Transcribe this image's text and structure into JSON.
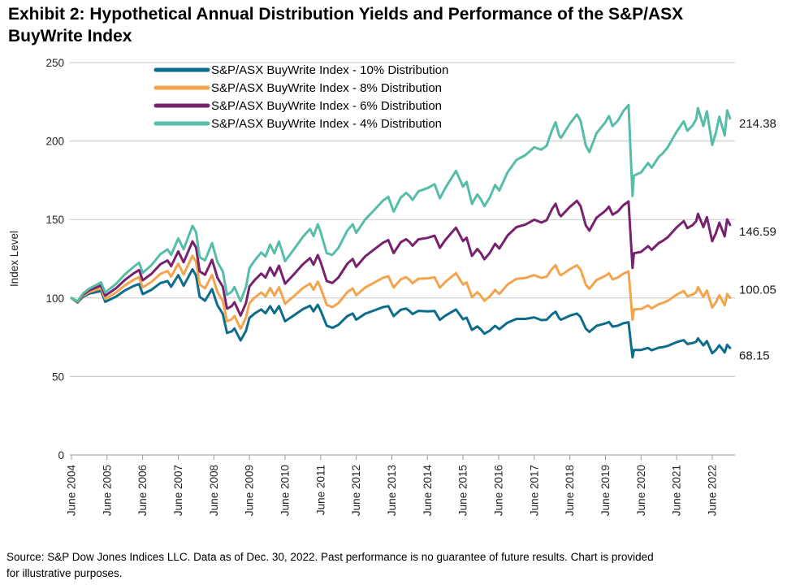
{
  "title": "Exhibit 2: Hypothetical Annual Distribution Yields and Performance of the S&P/ASX\nBuyWrite Index",
  "footer": "Source: S&P Dow Jones Indices LLC. Data as of Dec. 30, 2022. Past performance is no guarantee of future results. Chart is provided\nfor illustrative purposes.",
  "chart_data": {
    "type": "line",
    "title": "Exhibit 2: Hypothetical Annual Distribution Yields and Performance of the S&P/ASX BuyWrite Index",
    "ylabel": "Index Level",
    "xlabel": "",
    "ylim": [
      0,
      250
    ],
    "yticks": [
      0,
      50,
      100,
      150,
      200,
      250
    ],
    "grid": true,
    "legend_position": "top-left-inside",
    "x_unit": "years since June 2004",
    "xtick_labels": [
      "June 2004",
      "June 2005",
      "June 2006",
      "June 2007",
      "June 2008",
      "June 2009",
      "June 2010",
      "June 2011",
      "June 2012",
      "June 2013",
      "June 2014",
      "June 2015",
      "June 2016",
      "June 2017",
      "June 2018",
      "June 2019",
      "June 2020",
      "June 2021",
      "June 2022"
    ],
    "xtick_positions": [
      0,
      1,
      2,
      3,
      4,
      5,
      6,
      7,
      8,
      9,
      10,
      11,
      12,
      13,
      14,
      15,
      16,
      17,
      18
    ],
    "x": [
      0,
      0.17,
      0.33,
      0.5,
      0.67,
      0.83,
      0.95,
      1.25,
      1.5,
      1.75,
      1.9,
      2,
      2.25,
      2.5,
      2.7,
      2.8,
      3,
      3.15,
      3.4,
      3.5,
      3.6,
      3.75,
      3.95,
      4.1,
      4.25,
      4.37,
      4.5,
      4.58,
      4.75,
      4.9,
      5,
      5.15,
      5.33,
      5.45,
      5.58,
      5.7,
      5.83,
      6,
      6.25,
      6.5,
      6.7,
      6.8,
      6.92,
      7,
      7.17,
      7.33,
      7.5,
      7.75,
      7.9,
      8,
      8.25,
      8.5,
      8.75,
      8.9,
      9.05,
      9.25,
      9.4,
      9.5,
      9.58,
      9.75,
      10,
      10.2,
      10.35,
      10.5,
      10.8,
      11,
      11.1,
      11.25,
      11.4,
      11.5,
      11.6,
      11.75,
      11.9,
      12.02,
      12.25,
      12.5,
      12.75,
      13,
      13.2,
      13.35,
      13.5,
      13.6,
      13.7,
      13.75,
      14,
      14.2,
      14.3,
      14.45,
      14.55,
      14.75,
      15,
      15.1,
      15.2,
      15.35,
      15.5,
      15.65,
      15.76,
      15.8,
      16,
      16.2,
      16.3,
      16.5,
      16.6,
      16.75,
      17,
      17.2,
      17.3,
      17.45,
      17.55,
      17.6,
      17.75,
      17.85,
      18,
      18.1,
      18.2,
      18.35,
      18.42,
      18.5
    ],
    "series": [
      {
        "name": "S&P/ASX BuyWrite Index - 10% Distribution",
        "color": "#0E6C8B",
        "end_label": "68.15",
        "label_dy": 9,
        "values": [
          100,
          97,
          100.9,
          102.8,
          103.6,
          104.5,
          97.6,
          100.9,
          104.8,
          107.7,
          108.9,
          102.5,
          105.3,
          109.6,
          110.8,
          107.2,
          114.6,
          107.8,
          118.3,
          114.3,
          100.8,
          98.3,
          105.7,
          95.4,
          89.9,
          77.8,
          78.7,
          80.6,
          73,
          79,
          87.3,
          90.2,
          92.7,
          90.3,
          94.8,
          90.3,
          94.8,
          85.2,
          89,
          92.9,
          95.1,
          91.5,
          95.7,
          92,
          82.4,
          81,
          82.9,
          88.5,
          90.1,
          86.2,
          90,
          92.1,
          94.2,
          94.8,
          88.5,
          92.5,
          93.3,
          91.6,
          89.8,
          91.8,
          91.5,
          91.7,
          86.1,
          88.7,
          92.7,
          86.5,
          87.5,
          79.7,
          81.9,
          80,
          77.3,
          79.2,
          82.3,
          80.1,
          84.3,
          86.7,
          86.7,
          87.7,
          85.9,
          86.2,
          89.7,
          91.3,
          87.1,
          86.2,
          88.7,
          90.1,
          87.9,
          80.5,
          78.4,
          82.3,
          83.8,
          84.8,
          81.8,
          82.4,
          83.9,
          84.6,
          62.2,
          66.9,
          66.9,
          68.2,
          66.7,
          68.4,
          68.7,
          69.5,
          71.9,
          73.2,
          70.7,
          71.3,
          72.2,
          74.3,
          69.8,
          72.5,
          64.8,
          66.8,
          69.9,
          65.3,
          70.2,
          68.15
        ]
      },
      {
        "name": "S&P/ASX BuyWrite Index - 8% Distribution",
        "color": "#F3A44C",
        "end_label": "100.05",
        "label_dy": -10,
        "values": [
          100,
          97.3,
          101.6,
          103.8,
          105.1,
          106.3,
          99.5,
          103.5,
          108.1,
          111.7,
          113.3,
          106.8,
          110.3,
          115.4,
          117.2,
          113.6,
          121.9,
          115,
          126.9,
          122.9,
          108.6,
          106.2,
          114.7,
          103.8,
          98.2,
          85.2,
          86.4,
          88.6,
          80.5,
          87.4,
          96.8,
          100.3,
          103.5,
          101,
          106.4,
          101.5,
          106.9,
          96.4,
          101.2,
          106.3,
          109.2,
          105.3,
          110.4,
          106.3,
          95.6,
          94.2,
          96.8,
          103.8,
          106.1,
          101.7,
          106.7,
          109.8,
          112.9,
          113.9,
          106.7,
          111.9,
          113.3,
          111.5,
          109.4,
          112.3,
          112.5,
          113.2,
          106.6,
          110.2,
          115.9,
          108.6,
          110,
          100.5,
          103.7,
          101.4,
          98.2,
          101,
          105.2,
          102.6,
          108.6,
          112.2,
          112.8,
          114.6,
          112.8,
          113.6,
          118.6,
          120.9,
          115.6,
          114.5,
          118.4,
          120.8,
          118.1,
          108.5,
          105.9,
          111.5,
          114.2,
          115.8,
          111.9,
          113.1,
          115.5,
          116.9,
          86.1,
          92.7,
          93,
          95.3,
          93.4,
          96.1,
          96.8,
          98.2,
          102.1,
          104.5,
          101.1,
          102.2,
          103.7,
          106.9,
          100.7,
          104.8,
          94,
          97.1,
          101.7,
          95.4,
          102.6,
          100.05
        ]
      },
      {
        "name": "S&P/ASX BuyWrite Index - 6% Distribution",
        "color": "#77216F",
        "end_label": "146.59",
        "label_dy": 8,
        "values": [
          100,
          97.7,
          102.3,
          104.9,
          106.5,
          108.1,
          101.5,
          106.2,
          111.5,
          115.8,
          117.8,
          111.3,
          115.5,
          121.6,
          123.9,
          120.3,
          129.7,
          122.8,
          136.1,
          132.1,
          117,
          114.8,
          124.4,
          113,
          107.2,
          93.2,
          94.8,
          97.3,
          88.8,
          96.7,
          107.3,
          111.5,
          115.6,
          113,
          119.4,
          114.2,
          120.6,
          109.1,
          115.1,
          121.5,
          125.4,
          121.2,
          127.4,
          122.9,
          110.8,
          109.6,
          113.1,
          121.9,
          124.9,
          119.9,
          126.5,
          130.9,
          135.2,
          136.9,
          128.6,
          135.5,
          137.5,
          135.6,
          133.3,
          137.4,
          138.3,
          139.7,
          132,
          136.9,
          144.8,
          136.3,
          138.4,
          126.8,
          131.2,
          128.6,
          124.7,
          128.7,
          134.5,
          131.5,
          139.8,
          145.2,
          146.8,
          149.9,
          148.1,
          149.6,
          156.7,
          160.1,
          153.4,
          152.1,
          158,
          161.9,
          158.6,
          146.2,
          142.9,
          151.2,
          155.6,
          158.2,
          153.1,
          155.2,
          159.1,
          161.5,
          119.2,
          128.5,
          129.4,
          133.1,
          130.7,
          135.1,
          136.3,
          138.7,
          145,
          149,
          144.5,
          146.5,
          149,
          153.7,
          145.2,
          151.5,
          136.2,
          141.1,
          148,
          139.3,
          150.1,
          146.59
        ]
      },
      {
        "name": "S&P/ASX BuyWrite Index - 4% Distribution",
        "color": "#57BDA8",
        "end_label": "214.38",
        "label_dy": 6,
        "values": [
          100,
          98,
          103,
          106,
          108,
          110,
          103.5,
          109,
          115,
          120,
          122.5,
          116,
          121,
          128,
          131,
          127.5,
          138,
          131,
          146,
          142,
          126,
          124,
          135,
          123,
          117,
          102,
          104,
          107,
          98,
          107,
          119,
          124,
          129,
          126.5,
          134,
          128.5,
          136,
          123.5,
          131,
          139,
          144,
          139.5,
          147,
          142,
          128.5,
          127.5,
          132,
          143,
          147,
          141.5,
          150,
          156,
          162,
          164.5,
          155,
          164,
          167,
          165,
          162.5,
          168,
          170,
          172.5,
          163.5,
          170,
          181,
          171,
          174,
          160,
          166,
          163,
          158.5,
          164,
          172,
          168.5,
          180,
          188,
          191,
          196,
          194.5,
          197,
          207,
          212,
          203.5,
          202,
          211,
          217,
          213,
          197,
          193,
          205,
          212,
          216,
          209.5,
          213,
          219,
          223,
          165,
          178,
          180,
          186,
          183,
          190,
          192,
          196,
          206,
          212.5,
          206.5,
          210,
          214,
          221,
          209.5,
          219,
          197.5,
          205,
          215.5,
          203.5,
          219.5,
          214.38
        ]
      }
    ],
    "colors": {
      "grid": "#C7C7C7",
      "axis": "#9A9A9A",
      "tick_text": "#262626",
      "end_label_text": "#1A1A1A",
      "legend_text": "#000000"
    }
  }
}
